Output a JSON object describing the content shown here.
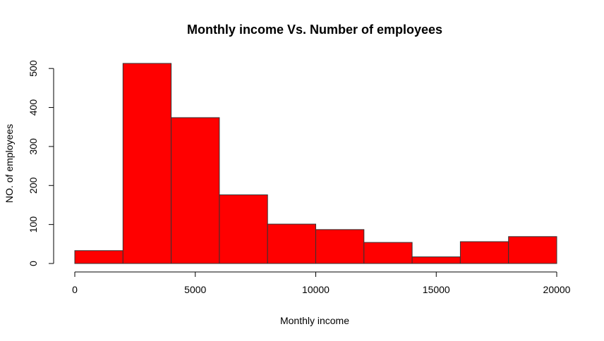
{
  "chart_data": {
    "type": "bar",
    "title": "Monthly income Vs. Number of employees",
    "xlabel": "Monthly income",
    "ylabel": "NO. of employees",
    "bins": [
      {
        "from": 0,
        "to": 2000,
        "count": 33
      },
      {
        "from": 2000,
        "to": 4000,
        "count": 513
      },
      {
        "from": 4000,
        "to": 6000,
        "count": 374
      },
      {
        "from": 6000,
        "to": 8000,
        "count": 176
      },
      {
        "from": 8000,
        "to": 10000,
        "count": 101
      },
      {
        "from": 10000,
        "to": 12000,
        "count": 87
      },
      {
        "from": 12000,
        "to": 14000,
        "count": 54
      },
      {
        "from": 14000,
        "to": 16000,
        "count": 17
      },
      {
        "from": 16000,
        "to": 18000,
        "count": 56
      },
      {
        "from": 18000,
        "to": 20000,
        "count": 69
      }
    ],
    "xticks": [
      0,
      5000,
      10000,
      15000,
      20000
    ],
    "yticks": [
      0,
      100,
      200,
      300,
      400,
      500
    ],
    "xlim": [
      0,
      20000
    ],
    "ylim": [
      0,
      513
    ],
    "bar_color": "#ff0000",
    "grid": false
  }
}
